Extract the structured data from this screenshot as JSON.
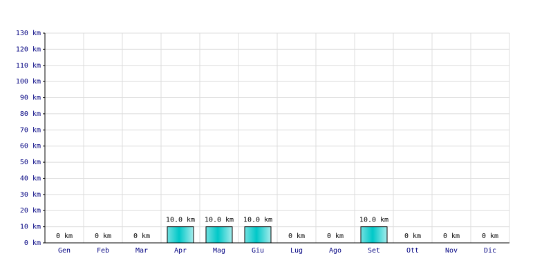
{
  "chart_data": {
    "type": "bar",
    "categories": [
      "Gen",
      "Feb",
      "Mar",
      "Apr",
      "Mag",
      "Giu",
      "Lug",
      "Ago",
      "Set",
      "Ott",
      "Nov",
      "Dic"
    ],
    "values": [
      0,
      0,
      0,
      10,
      10,
      10,
      0,
      0,
      10,
      0,
      0,
      0
    ],
    "value_labels": [
      "0 km",
      "0 km",
      "0 km",
      "10.0 km",
      "10.0 km",
      "10.0 km",
      "0 km",
      "0 km",
      "10.0 km",
      "0 km",
      "0 km",
      "0 km"
    ],
    "color": "#00c8c8",
    "ylim": [
      0,
      130
    ],
    "yticks": [
      {
        "value": 0,
        "label": "0 km"
      },
      {
        "value": 10,
        "label": "10 km"
      },
      {
        "value": 20,
        "label": "20 km"
      },
      {
        "value": 30,
        "label": "30 km"
      },
      {
        "value": 40,
        "label": "40 km"
      },
      {
        "value": 50,
        "label": "50 km"
      },
      {
        "value": 60,
        "label": "60 km"
      },
      {
        "value": 70,
        "label": "70 km"
      },
      {
        "value": 80,
        "label": "80 km"
      },
      {
        "value": 90,
        "label": "90 km"
      },
      {
        "value": 100,
        "label": "100 km"
      },
      {
        "value": 110,
        "label": "110 km"
      },
      {
        "value": 120,
        "label": "120 km"
      },
      {
        "value": 130,
        "label": "130 km"
      }
    ],
    "grid": true
  }
}
